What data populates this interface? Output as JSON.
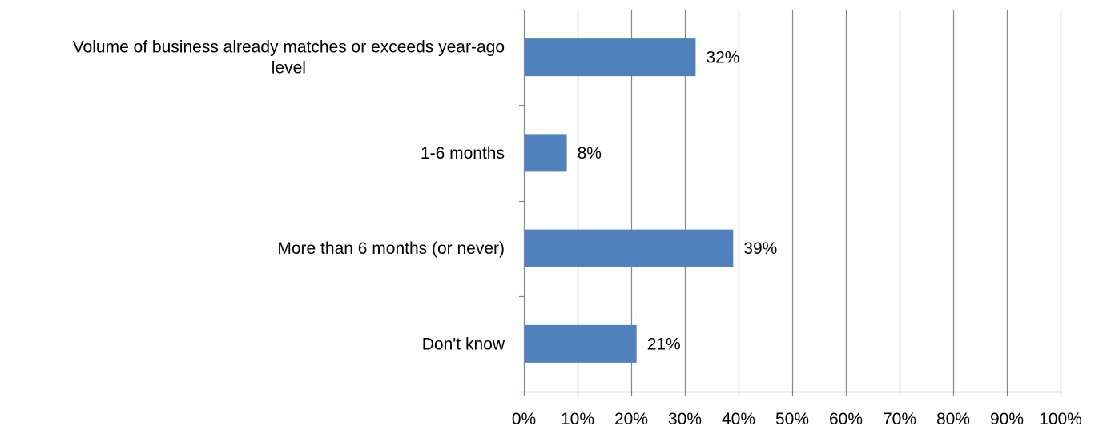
{
  "chart_data": {
    "type": "bar",
    "orientation": "horizontal",
    "categories": [
      [
        "Volume of business already matches or exceeds year-ago",
        "level"
      ],
      [
        "1-6 months"
      ],
      [
        "More than 6 months (or never)"
      ],
      [
        "Don't know"
      ]
    ],
    "values": [
      32,
      8,
      39,
      21
    ],
    "data_labels": [
      "32%",
      "8%",
      "39%",
      "21%"
    ],
    "xlim": [
      0,
      100
    ],
    "ticks": [
      0,
      10,
      20,
      30,
      40,
      50,
      60,
      70,
      80,
      90,
      100
    ],
    "tick_labels": [
      "0%",
      "10%",
      "20%",
      "30%",
      "40%",
      "50%",
      "60%",
      "70%",
      "80%",
      "90%",
      "100%"
    ],
    "grid": true,
    "bar_color": "#4f81bd",
    "grid_color": "#868686",
    "title": "",
    "xlabel": "",
    "ylabel": ""
  }
}
